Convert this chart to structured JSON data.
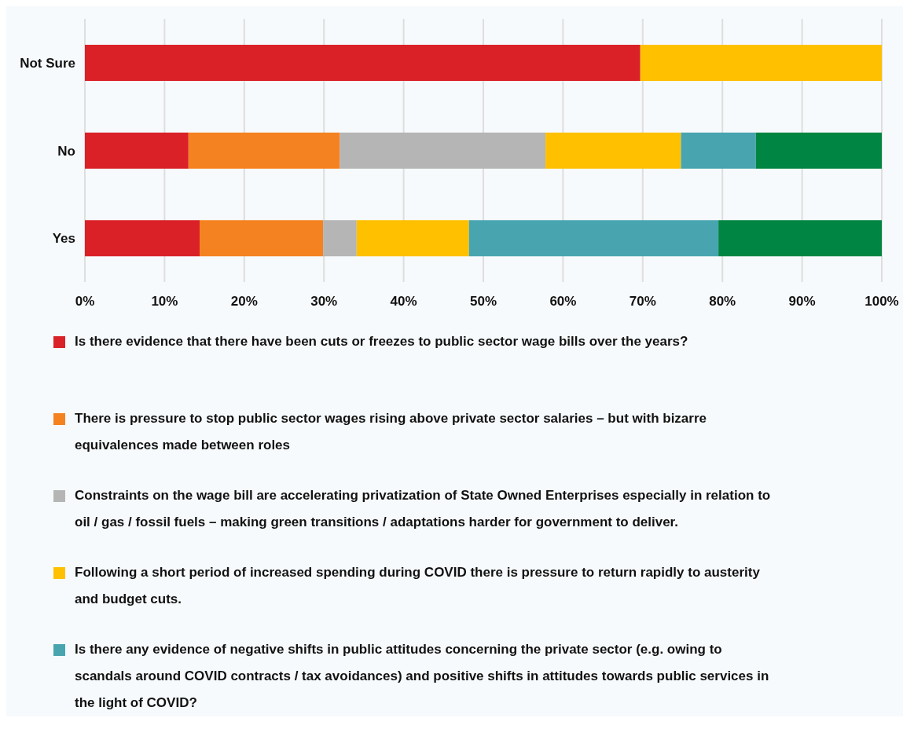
{
  "chart_data": {
    "type": "bar",
    "orientation": "horizontal",
    "stacked": true,
    "categories": [
      "Not Sure",
      "No",
      "Yes"
    ],
    "series": [
      {
        "name": "Is there evidence that there have been cuts or freezes to public sector wage bills over the years?",
        "color": "#da2128",
        "values": [
          69.7,
          13.0,
          14.4
        ]
      },
      {
        "name": "There is pressure to stop public sector wages rising above private sector salaries  –  but with bizarre equivalences made between roles",
        "color": "#f58220",
        "values": [
          0,
          19.0,
          15.5
        ]
      },
      {
        "name": "Constraints on the wage bill are accelerating privatization of State Owned Enterprises especially in relation to oil / gas / fossil fuels  –  making green transitions / adaptations harder for government to deliver.",
        "color": "#b5b5b5",
        "values": [
          0,
          25.8,
          4.2
        ]
      },
      {
        "name": "Following a short period of increased spending during COVID there is pressure to return rapidly to austerity and budget cuts.",
        "color": "#ffc000",
        "values": [
          30.3,
          17.0,
          14.1
        ]
      },
      {
        "name": "Is there any evidence of negative shifts in public attitudes concerning the private sector (e.g. owing to scandals around COVID contracts / tax avoidances) and positive shifts in attitudes towards public services in the light of COVID?",
        "color": "#48a5b0",
        "values": [
          0,
          9.4,
          31.3
        ]
      },
      {
        "color": "#008542",
        "values": [
          0,
          15.8,
          20.5
        ]
      }
    ],
    "xlim": [
      0,
      100
    ],
    "xticks": [
      {
        "value": 0,
        "label": "0%"
      },
      {
        "value": 10,
        "label": "10%"
      },
      {
        "value": 20,
        "label": "20%"
      },
      {
        "value": 30,
        "label": "30%"
      },
      {
        "value": 40,
        "label": "40%"
      },
      {
        "value": 50,
        "label": "50%"
      },
      {
        "value": 60,
        "label": "60%"
      },
      {
        "value": 70,
        "label": "70%"
      },
      {
        "value": 80,
        "label": "80%"
      },
      {
        "value": 90,
        "label": "90%"
      },
      {
        "value": 100,
        "label": "100%"
      }
    ],
    "grid": "x",
    "legend": "bottom"
  }
}
